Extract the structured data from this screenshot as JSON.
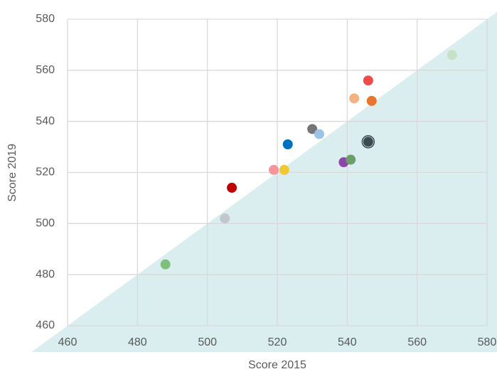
{
  "chart_data": {
    "type": "scatter",
    "xlabel": "Score 2015",
    "ylabel": "Score 2019",
    "x": [
      488,
      505,
      507,
      519,
      522,
      523,
      530,
      532,
      539,
      541,
      546,
      542,
      547,
      546,
      570
    ],
    "values": [
      484,
      502,
      514,
      521,
      521,
      531,
      537,
      535,
      524,
      525,
      556,
      549,
      548,
      532,
      566
    ],
    "colors": [
      "#7dbf7d",
      "#c0c8cc",
      "#c00000",
      "#f4949c",
      "#f0c832",
      "#0070c0",
      "#757575",
      "#9dc3e6",
      "#8e44ad",
      "#6a9f6a",
      "#f04a4a",
      "#f4b183",
      "#e8742e",
      "#3c4a50",
      "#c6e2c6"
    ],
    "highlight_index": 13,
    "xlim": [
      460,
      580
    ],
    "xticks": [
      460,
      480,
      500,
      520,
      540,
      560,
      580
    ],
    "ylim": [
      460,
      580
    ],
    "yticks": [
      460,
      480,
      500,
      520,
      540,
      560,
      580
    ],
    "grid": true,
    "diagonal_shading": "#daeef0"
  }
}
